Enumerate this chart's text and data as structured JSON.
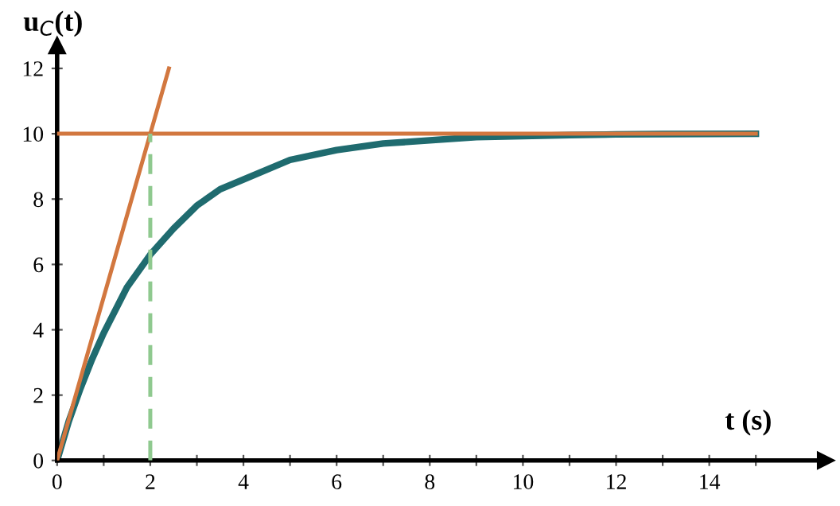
{
  "chart_data": {
    "type": "line",
    "xlabel": "t (s)",
    "ylabel": "u$_{C}$(t)",
    "xlim": [
      0,
      16.5
    ],
    "ylim": [
      0,
      12.7
    ],
    "xticks": [
      0,
      {
        "value": 1,
        "label": null
      },
      2,
      {
        "value": 3,
        "label": null
      },
      4,
      {
        "value": 5,
        "label": null
      },
      6,
      {
        "value": 7,
        "label": null
      },
      8,
      {
        "value": 9,
        "label": null
      },
      10,
      {
        "value": 11,
        "label": null
      },
      12,
      {
        "value": 13,
        "label": null
      },
      14,
      {
        "value": 15,
        "label": null
      }
    ],
    "yticks": [
      0,
      2,
      4,
      6,
      8,
      10,
      12
    ],
    "grid": false,
    "legend": false,
    "marker": "none",
    "series": [
      {
        "color": "#1f6b6f",
        "x": [
          0,
          0.25,
          0.5,
          0.75,
          1,
          1.25,
          1.5,
          2,
          2.5,
          3,
          3.5,
          4,
          5,
          6,
          7,
          8,
          9,
          10,
          11,
          12,
          13,
          15
        ],
        "values": [
          0,
          1.2,
          2.2,
          3.1,
          3.9,
          4.6,
          5.3,
          6.3,
          7.1,
          7.8,
          8.3,
          8.6,
          9.2,
          9.5,
          9.7,
          9.8,
          9.9,
          9.93,
          9.96,
          9.98,
          9.99,
          10
        ]
      },
      {
        "color": "#d2773f",
        "x": [
          0,
          2.4
        ],
        "values": [
          0,
          12
        ]
      },
      {
        "color": "#d2773f",
        "x": [
          0,
          15
        ],
        "values": [
          10,
          10
        ]
      },
      {
        "color": "#8fc98f",
        "x": [
          2,
          2
        ],
        "values": [
          0,
          10
        ],
        "line_style": "dashed"
      }
    ]
  }
}
